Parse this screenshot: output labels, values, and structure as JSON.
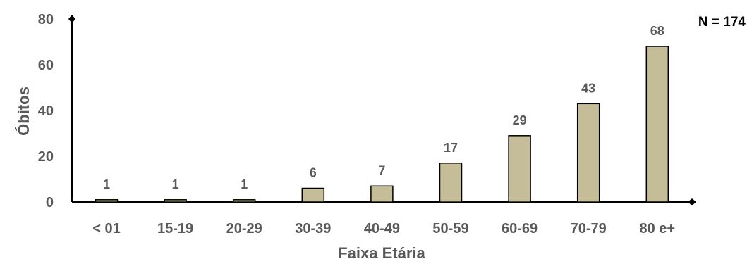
{
  "chart_data": {
    "type": "bar",
    "categories": [
      "< 01",
      "15-19",
      "20-29",
      "30-39",
      "40-49",
      "50-59",
      "60-69",
      "70-79",
      "80 e+"
    ],
    "values": [
      1,
      1,
      1,
      6,
      7,
      17,
      29,
      43,
      68
    ],
    "xlabel": "Faixa Etária",
    "ylabel": "Óbitos",
    "ylim": [
      0,
      80
    ],
    "yticks": [
      0,
      20,
      40,
      60,
      80
    ],
    "annotation": "N = 174",
    "grid": false,
    "bar_color": "#c4bd97",
    "bar_edge_color": "#000000",
    "axis_color": "#000000",
    "text_color": "#595959"
  }
}
